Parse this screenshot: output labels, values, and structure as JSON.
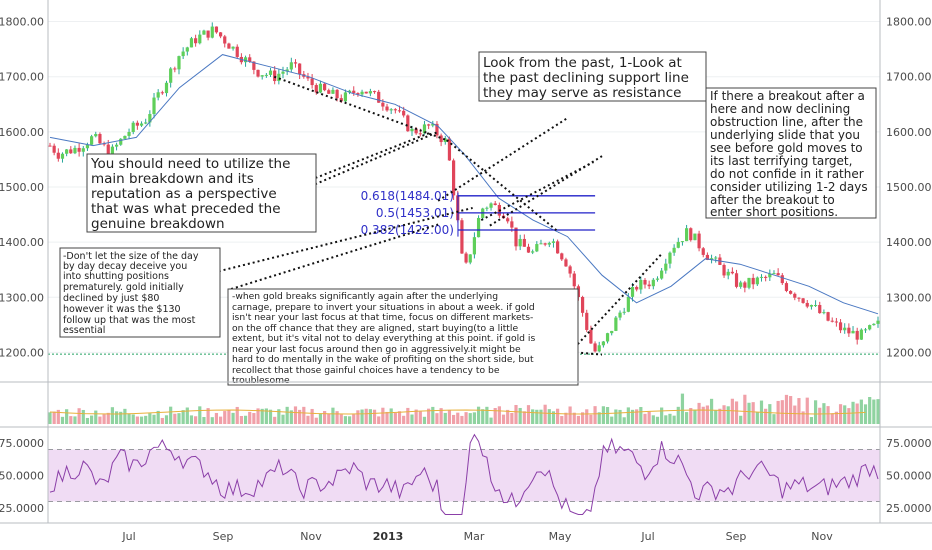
{
  "chart_data": {
    "type": "candlestick",
    "price_axis": {
      "range": [
        1150,
        1830
      ],
      "ticks": [
        "1800.00",
        "1700.00",
        "1600.00",
        "1500.00",
        "1400.00",
        "1300.00",
        "1200.00"
      ],
      "tick_values": [
        1800,
        1700,
        1600,
        1500,
        1400,
        1300,
        1200
      ]
    },
    "rsi_axis": {
      "range": [
        15,
        85
      ],
      "ticks": [
        "75.0000",
        "50.0000",
        "25.0000"
      ],
      "tick_values": [
        75,
        50,
        25
      ],
      "band": [
        30,
        70
      ]
    },
    "x_axis_labels": [
      {
        "label": "Jul",
        "week": 3
      },
      {
        "label": "Sep",
        "week": 12
      },
      {
        "label": "Nov",
        "week": 21
      },
      {
        "label": "2013",
        "week": 30,
        "bold": true
      },
      {
        "label": "Mar",
        "week": 38
      },
      {
        "label": "May",
        "week": 47
      },
      {
        "label": "Jul",
        "week": 56
      },
      {
        "label": "Sep",
        "week": 65
      },
      {
        "label": "Nov",
        "week": 74
      }
    ],
    "weeks": 84,
    "price_path": [
      [
        0,
        1575
      ],
      [
        1,
        1560
      ],
      [
        3,
        1570
      ],
      [
        5,
        1590
      ],
      [
        7,
        1560
      ],
      [
        9,
        1600
      ],
      [
        11,
        1620
      ],
      [
        13,
        1680
      ],
      [
        15,
        1740
      ],
      [
        17,
        1770
      ],
      [
        19,
        1785
      ],
      [
        20,
        1770
      ],
      [
        22,
        1740
      ],
      [
        24,
        1710
      ],
      [
        26,
        1700
      ],
      [
        28,
        1720
      ],
      [
        30,
        1690
      ],
      [
        32,
        1670
      ],
      [
        34,
        1660
      ],
      [
        36,
        1680
      ],
      [
        38,
        1660
      ],
      [
        40,
        1640
      ],
      [
        42,
        1600
      ],
      [
        44,
        1610
      ],
      [
        46,
        1580
      ],
      [
        47,
        1470
      ],
      [
        48,
        1340
      ],
      [
        49,
        1400
      ],
      [
        50,
        1460
      ],
      [
        51,
        1470
      ],
      [
        53,
        1450
      ],
      [
        54,
        1400
      ],
      [
        56,
        1380
      ],
      [
        58,
        1410
      ],
      [
        60,
        1360
      ],
      [
        62,
        1260
      ],
      [
        63,
        1200
      ],
      [
        64,
        1210
      ],
      [
        66,
        1270
      ],
      [
        68,
        1320
      ],
      [
        70,
        1330
      ],
      [
        72,
        1390
      ],
      [
        74,
        1420
      ],
      [
        76,
        1380
      ],
      [
        78,
        1350
      ],
      [
        80,
        1320
      ],
      [
        82,
        1330
      ],
      [
        84,
        1340
      ],
      [
        86,
        1310
      ],
      [
        88,
        1290
      ],
      [
        90,
        1260
      ],
      [
        92,
        1240
      ],
      [
        94,
        1230
      ],
      [
        96,
        1250
      ]
    ],
    "ma_path": [
      [
        0,
        1590
      ],
      [
        5,
        1575
      ],
      [
        10,
        1590
      ],
      [
        15,
        1680
      ],
      [
        20,
        1740
      ],
      [
        25,
        1720
      ],
      [
        30,
        1700
      ],
      [
        35,
        1670
      ],
      [
        40,
        1650
      ],
      [
        45,
        1610
      ],
      [
        48,
        1560
      ],
      [
        52,
        1480
      ],
      [
        56,
        1440
      ],
      [
        60,
        1410
      ],
      [
        64,
        1340
      ],
      [
        68,
        1290
      ],
      [
        72,
        1320
      ],
      [
        76,
        1370
      ],
      [
        80,
        1360
      ],
      [
        84,
        1340
      ],
      [
        88,
        1320
      ],
      [
        92,
        1290
      ],
      [
        96,
        1270
      ]
    ],
    "support_level": 1197,
    "fibonacci": [
      {
        "label": "0.618(1484.01)",
        "value": 1484.01
      },
      {
        "label": "0.5(1453.01)",
        "value": 1453.01
      },
      {
        "label": "0.382(1422.00)",
        "value": 1422.0
      }
    ]
  },
  "annotations": {
    "top_center": "Look from the past, 1-Look at the past declining support line they may serve as resistance",
    "top_center_lines": [
      "Look from the past, 1-Look at",
      "the past declining support line",
      "they may serve as resistance"
    ],
    "right": "If there a breakout after a here and now declining obstruction line, after the underlying slide that you see before gold moves to its last terrifying target, do not confide in it rather consider utilizing 1-2 days after the breakout to enter short positions.",
    "right_lines": [
      "If there a breakout after a",
      "here and now declining",
      "obstruction line, after the",
      "underlying slide that you",
      "see before gold moves to",
      "its last terrifying target,",
      "do not confide in it rather",
      "consider utilizing 1-2 days",
      "after the breakout to",
      "enter short positions."
    ],
    "left_big": "You should need to utilize the main breakdown and its reputation as a perspective that was what preceded the genuine breakdown",
    "left_big_lines": [
      "You should need to utilize the",
      "main breakdown and its",
      "reputation as a perspective",
      "that was what preceded the",
      "genuine breakdown"
    ],
    "left_small": "-Don't let the size of the day by day decay deceive you into shutting positions prematurely. gold initially declined by just $80 however it was the $130 follow up that was the most essential",
    "left_small_lines": [
      "-Don't let the size of the day",
      "by day decay deceive you",
      "into shutting positions",
      "prematurely. gold initially",
      "declined by just $80",
      "however it was the $130",
      "follow up that  was the most",
      "essential"
    ],
    "bottom_center": "-when gold breaks significantly again after the underlying carnage, prepare to invert your situations in about a week. if gold isn't near your last focus at that time, focus on different markets-on the off chance that they are aligned, start buying(to a little extent, but it's vital not to delay everything at this point. if gold is near your last focus around then go in aggressively.it might be hard to do mentally in the wake of profiting on the short side, but recollect that those gainful choices have a tendency to be troublesome",
    "bottom_center_lines": [
      "-when gold breaks significantly again after the underlying",
      "carnage, prepare to invert your situations in about a week. if gold",
      "isn't near your last focus at that time, focus on different markets-",
      "on the off chance that they are aligned, start buying(to a little",
      "extent, but it's vital not to delay everything at this point. if gold is",
      "near your last focus around then go in aggressively.it might be",
      "hard to do mentally in the wake of profiting on the short side, but",
      "recollect that those gainful choices have a tendency to be",
      "troublesome"
    ]
  },
  "colors": {
    "up": "#26a69a",
    "up_body": "#5fcf5a",
    "down": "#e0455a",
    "ma": "#4a78c2",
    "fib": "#2020c8",
    "rsi": "#8b3fa8",
    "rsi_band": "#f0dcf4",
    "support": "#22a060",
    "grid": "#eef0f2"
  }
}
